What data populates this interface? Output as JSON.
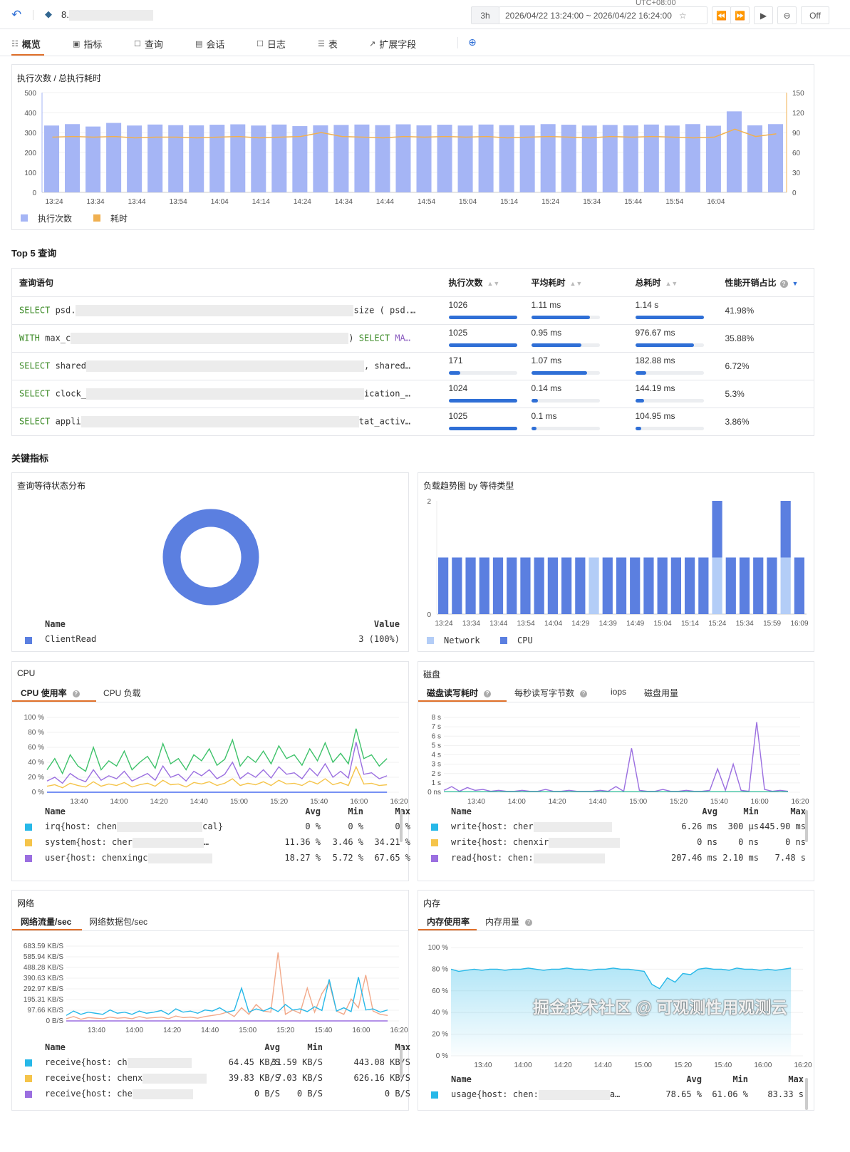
{
  "header": {
    "instance": "8.",
    "timezone": "UTC+08:00",
    "range_preset": "3h",
    "time_range": "2026/04/22 13:24:00 ~ 2026/04/22 16:24:00",
    "refresh": "Off"
  },
  "tabs": [
    {
      "label": "概览",
      "icon": "overview-icon",
      "active": true
    },
    {
      "label": "指标",
      "icon": "metrics-icon"
    },
    {
      "label": "查询",
      "icon": "query-icon"
    },
    {
      "label": "会话",
      "icon": "session-icon"
    },
    {
      "label": "日志",
      "icon": "log-icon"
    },
    {
      "label": "表",
      "icon": "table-icon"
    },
    {
      "label": "扩展字段",
      "icon": "extend-icon"
    }
  ],
  "colors": {
    "accent": "#e0702a",
    "bar": "#a5b5f5",
    "line": "#f0b050",
    "blue": "#5b7fe0",
    "light": "#b3cdf7"
  },
  "exec_chart": {
    "title": "执行次数 / 总执行耗时",
    "legend": [
      "执行次数",
      "耗时"
    ]
  },
  "top5": {
    "title": "Top 5 查询",
    "columns": [
      "查询语句",
      "执行次数",
      "平均耗时",
      "总耗时",
      "性能开销占比"
    ],
    "rows": [
      {
        "kw": "SELECT",
        "start": " psd.",
        "end": "size ( psd.…",
        "count": "1026",
        "count_frac": 1.0,
        "avg": "1.11 ms",
        "avg_frac": 0.86,
        "total": "1.14 s",
        "total_frac": 1.0,
        "pct": "41.98%"
      },
      {
        "kw": "WITH",
        "start": " max_c",
        "end": ") ",
        "kw_end": "SELECT",
        "kw_end2": " MA…",
        "count": "1025",
        "count_frac": 1.0,
        "avg": "0.95 ms",
        "avg_frac": 0.73,
        "total": "976.67 ms",
        "total_frac": 0.86,
        "pct": "35.88%"
      },
      {
        "kw": "SELECT",
        "start": " shared",
        "end": ", shared…",
        "count": "171",
        "count_frac": 0.17,
        "avg": "1.07 ms",
        "avg_frac": 0.82,
        "total": "182.88 ms",
        "total_frac": 0.16,
        "pct": "6.72%"
      },
      {
        "kw": "SELECT",
        "start": " clock_",
        "end": "ication_…",
        "count": "1024",
        "count_frac": 1.0,
        "avg": "0.14 ms",
        "avg_frac": 0.1,
        "total": "144.19 ms",
        "total_frac": 0.13,
        "pct": "5.3%"
      },
      {
        "kw": "SELECT",
        "start": " appli",
        "end": "tat_activ…",
        "count": "1025",
        "count_frac": 1.0,
        "avg": "0.1 ms",
        "avg_frac": 0.08,
        "total": "104.95 ms",
        "total_frac": 0.09,
        "pct": "3.86%"
      }
    ]
  },
  "key_metrics": {
    "title": "关键指标"
  },
  "wait_dist": {
    "title": "查询等待状态分布",
    "name_header": "Name",
    "value_header": "Value",
    "items": [
      {
        "name": "ClientRead",
        "value": "3 (100%)"
      }
    ]
  },
  "load_trend": {
    "title": "负载趋势图 by 等待类型",
    "legend": [
      "Network",
      "CPU"
    ]
  },
  "cpu": {
    "title": "CPU",
    "tabs": [
      "CPU 使用率",
      "CPU 负载"
    ],
    "headers": [
      "Name",
      "Avg",
      "Min",
      "Max"
    ],
    "rows": [
      {
        "pre": "irq{host: chen",
        "post": "cal}",
        "avg": "0 %",
        "min": "0 %",
        "max": "0 %"
      },
      {
        "pre": "system{host: cher",
        "post": "…",
        "avg": "11.36 %",
        "min": "3.46 %",
        "max": "34.21 %"
      },
      {
        "pre": "user{host: chenxingc",
        "post": "",
        "avg": "18.27 %",
        "min": "5.72 %",
        "max": "67.65 %"
      }
    ]
  },
  "disk": {
    "title": "磁盘",
    "tabs": [
      "磁盘读写耗时",
      "每秒读写字节数",
      "iops",
      "磁盘用量"
    ],
    "headers": [
      "Name",
      "Avg",
      "Min",
      "Max"
    ],
    "rows": [
      {
        "pre": "write{host: cher",
        "post": "",
        "avg": "6.26 ms",
        "min": "300 µs",
        "max": "445.90 ms"
      },
      {
        "pre": "write{host: chenxir",
        "post": "",
        "avg": "0 ns",
        "min": "0 ns",
        "max": "0 ns"
      },
      {
        "pre": "read{host: chen:",
        "post": "",
        "avg": "207.46 ms",
        "min": "2.10 ms",
        "max": "7.48 s"
      }
    ]
  },
  "net": {
    "title": "网络",
    "tabs": [
      "网络流量/sec",
      "网络数据包/sec"
    ],
    "headers": [
      "Name",
      "Avg",
      "Min",
      "Max"
    ],
    "rows": [
      {
        "pre": "receive{host: ch",
        "post": "",
        "avg": "64.45 KB/S",
        "min": "31.59 KB/S",
        "max": "443.08 KB/S"
      },
      {
        "pre": "receive{host: chenx",
        "post": "",
        "avg": "39.83 KB/S",
        "min": "7.03 KB/S",
        "max": "626.16 KB/S"
      },
      {
        "pre": "receive{host: che",
        "post": "",
        "avg": "0 B/S",
        "min": "0 B/S",
        "max": "0 B/S"
      }
    ]
  },
  "mem": {
    "title": "内存",
    "tabs": [
      "内存使用率",
      "内存用量"
    ],
    "headers": [
      "Name",
      "Avg",
      "Min",
      "Max"
    ],
    "rows": [
      {
        "pre": "usage{host: chen:",
        "post": "a…",
        "avg": "78.65 %",
        "min": "61.06 %",
        "max": "83.33 s"
      }
    ]
  },
  "watermark": "掘金技术社区 @ 可观测性用观测云",
  "chart_data": [
    {
      "id": "exec",
      "type": "bar",
      "title": "执行次数 / 总执行耗时",
      "x_ticks": [
        "13:24",
        "13:34",
        "13:44",
        "13:54",
        "14:04",
        "14:14",
        "14:24",
        "14:34",
        "14:44",
        "14:54",
        "15:04",
        "15:14",
        "15:24",
        "15:34",
        "15:44",
        "15:54",
        "16:04"
      ],
      "y_ticks": [
        "0",
        "100",
        "200",
        "300",
        "400",
        "500"
      ],
      "y2_ticks": [
        "0",
        "30",
        "60",
        "90",
        "120",
        "150"
      ],
      "ylim": [
        0,
        500
      ],
      "y2lim": [
        0,
        150
      ],
      "series": [
        {
          "name": "执行次数",
          "type": "bar",
          "values": [
            335,
            342,
            330,
            348,
            335,
            340,
            337,
            336,
            339,
            341,
            335,
            340,
            332,
            336,
            338,
            340,
            337,
            341,
            336,
            339,
            335,
            340,
            337,
            336,
            342,
            339,
            335,
            338,
            336,
            340,
            335,
            342,
            334,
            406,
            336,
            342
          ]
        },
        {
          "name": "耗时",
          "type": "line",
          "values": [
            83,
            84,
            83,
            84,
            82,
            83,
            83,
            82,
            83,
            84,
            82,
            83,
            84,
            90,
            84,
            83,
            82,
            84,
            83,
            84,
            83,
            84,
            82,
            83,
            84,
            83,
            82,
            84,
            83,
            84,
            83,
            82,
            83,
            95,
            84,
            88
          ]
        }
      ]
    },
    {
      "id": "load",
      "type": "stacked-bar",
      "x_ticks": [
        "13:24",
        "13:34",
        "13:44",
        "13:54",
        "14:04",
        "14:29",
        "14:39",
        "14:49",
        "15:04",
        "15:14",
        "15:24",
        "15:34",
        "15:59",
        "16:09"
      ],
      "y_ticks": [
        "0",
        "2"
      ],
      "ylim": [
        0,
        2
      ],
      "series": [
        {
          "name": "Network",
          "values": [
            0,
            0,
            0,
            0,
            0,
            0,
            0,
            0,
            0,
            0,
            0,
            1,
            0,
            0,
            0,
            0,
            0,
            0,
            0,
            0,
            1,
            0,
            0,
            0,
            0,
            1,
            0
          ]
        },
        {
          "name": "CPU",
          "values": [
            1,
            1,
            1,
            1,
            1,
            1,
            1,
            1,
            1,
            1,
            1,
            0,
            1,
            1,
            1,
            1,
            1,
            1,
            1,
            1,
            1,
            1,
            1,
            1,
            1,
            1,
            1
          ]
        }
      ]
    },
    {
      "id": "cpu",
      "type": "line",
      "xlim": [
        "13:24",
        "16:20"
      ],
      "series_end": "16:14",
      "x_ticks": [
        "13:40",
        "14:00",
        "14:20",
        "14:40",
        "15:00",
        "15:20",
        "15:40",
        "16:00",
        "16:20"
      ],
      "y_ticks": [
        "0 %",
        "20 %",
        "40 %",
        "60 %",
        "80 %",
        "100 %"
      ],
      "ylim": [
        0,
        100
      ],
      "series": [
        {
          "color": "#3ec26a",
          "values": [
            30,
            45,
            25,
            50,
            35,
            28,
            60,
            30,
            42,
            35,
            55,
            30,
            40,
            48,
            32,
            65,
            38,
            45,
            30,
            50,
            42,
            58,
            36,
            44,
            70,
            35,
            48,
            40,
            55,
            38,
            62,
            45,
            50,
            36,
            58,
            42,
            66,
            40,
            52,
            38,
            85,
            45,
            50,
            35,
            45
          ]
        },
        {
          "name": "user",
          "color": "#9b6fe0",
          "values": [
            15,
            20,
            12,
            25,
            18,
            14,
            30,
            16,
            22,
            18,
            28,
            15,
            20,
            25,
            16,
            35,
            20,
            24,
            15,
            28,
            22,
            30,
            18,
            24,
            40,
            18,
            26,
            20,
            30,
            19,
            34,
            24,
            26,
            18,
            32,
            22,
            38,
            20,
            28,
            19,
            67,
            24,
            26,
            18,
            22
          ]
        },
        {
          "name": "system",
          "color": "#f5c44a",
          "values": [
            8,
            10,
            6,
            12,
            9,
            7,
            14,
            8,
            11,
            9,
            13,
            7,
            10,
            12,
            8,
            16,
            10,
            11,
            7,
            13,
            11,
            14,
            9,
            12,
            18,
            9,
            12,
            10,
            14,
            9,
            16,
            11,
            12,
            9,
            15,
            11,
            18,
            10,
            13,
            9,
            34,
            11,
            12,
            9,
            10
          ]
        },
        {
          "name": "irq",
          "color": "#4a6cf0",
          "values": [
            0,
            0
          ]
        }
      ]
    },
    {
      "id": "disk",
      "type": "line",
      "xlim": [
        "13:24",
        "16:20"
      ],
      "series_end": "16:14",
      "x_ticks": [
        "13:40",
        "14:00",
        "14:20",
        "14:40",
        "15:00",
        "15:20",
        "15:40",
        "16:00",
        "16:20"
      ],
      "y_ticks": [
        "0 ns",
        "1 s",
        "2 s",
        "3 s",
        "4 s",
        "5 s",
        "6 s",
        "7 s",
        "8 s"
      ],
      "ylim": [
        0,
        8
      ],
      "series": [
        {
          "name": "read",
          "color": "#9b6fe0",
          "values": [
            0.2,
            0.6,
            0.1,
            0.5,
            0.2,
            0.3,
            0.1,
            0.2,
            0.1,
            0.1,
            0.2,
            0.1,
            0.1,
            0.3,
            0.1,
            0.1,
            0.2,
            0.1,
            0.1,
            0.1,
            0.2,
            0.1,
            0.6,
            0.1,
            4.7,
            0.2,
            0.1,
            0.1,
            0.3,
            0.1,
            0.1,
            0.2,
            0.1,
            0.1,
            0.2,
            2.5,
            0.2,
            3.0,
            0.2,
            0.1,
            7.5,
            0.3,
            0.1,
            0.2,
            0.1
          ]
        },
        {
          "name": "write",
          "color": "#3ec2a0",
          "values": [
            0.05,
            0.05,
            0.05,
            0.05,
            0.05,
            0.05,
            0.05,
            0.05,
            0.05,
            0.05
          ]
        }
      ]
    },
    {
      "id": "net",
      "type": "line",
      "xlim": [
        "13:24",
        "16:20"
      ],
      "series_end": "16:14",
      "x_ticks": [
        "13:40",
        "14:00",
        "14:20",
        "14:40",
        "15:00",
        "15:20",
        "15:40",
        "16:00",
        "16:20"
      ],
      "y_ticks": [
        "0 B/S",
        "97.66 KB/S",
        "195.31 KB/S",
        "292.97 KB/S",
        "390.63 KB/S",
        "488.28 KB/S",
        "585.94 KB/S",
        "683.59 KB/S"
      ],
      "ylim": [
        0,
        683.59
      ],
      "series": [
        {
          "name": "receive 2",
          "color": "#f2a98a",
          "values": [
            20,
            40,
            15,
            30,
            25,
            20,
            35,
            25,
            30,
            20,
            40,
            25,
            30,
            35,
            20,
            45,
            30,
            35,
            25,
            40,
            50,
            60,
            80,
            40,
            120,
            60,
            150,
            90,
            80,
            626,
            60,
            100,
            70,
            300,
            80,
            250,
            350,
            90,
            60,
            200,
            120,
            420,
            90,
            60,
            50
          ]
        },
        {
          "name": "receive 1",
          "color": "#27b8e8",
          "values": [
            50,
            90,
            60,
            80,
            70,
            60,
            100,
            70,
            80,
            60,
            90,
            70,
            80,
            95,
            60,
            110,
            80,
            90,
            70,
            100,
            90,
            120,
            80,
            95,
            300,
            80,
            110,
            90,
            120,
            85,
            150,
            100,
            110,
            85,
            130,
            95,
            380,
            90,
            120,
            85,
            400,
            100,
            110,
            80,
            100
          ]
        },
        {
          "name": "receive 3",
          "color": "#9b6fe0",
          "values": [
            0,
            0
          ]
        }
      ]
    },
    {
      "id": "mem",
      "type": "area",
      "xlim": [
        "13:24",
        "16:20"
      ],
      "series_end": "16:14",
      "x_ticks": [
        "13:40",
        "14:00",
        "14:20",
        "14:40",
        "15:00",
        "15:20",
        "15:40",
        "16:00",
        "16:20"
      ],
      "y_ticks": [
        "0 %",
        "20 %",
        "40 %",
        "60 %",
        "80 %",
        "100 %"
      ],
      "ylim": [
        0,
        100
      ],
      "series": [
        {
          "name": "usage",
          "color": "#27b8e8",
          "values": [
            80,
            78,
            79,
            80,
            79,
            80,
            80,
            79,
            80,
            80,
            81,
            80,
            79,
            80,
            80,
            81,
            80,
            80,
            79,
            80,
            80,
            81,
            80,
            80,
            79,
            78,
            66,
            62,
            72,
            68,
            76,
            75,
            80,
            81,
            80,
            80,
            79,
            81,
            80,
            80,
            79,
            80,
            79,
            80,
            81
          ]
        }
      ]
    }
  ]
}
